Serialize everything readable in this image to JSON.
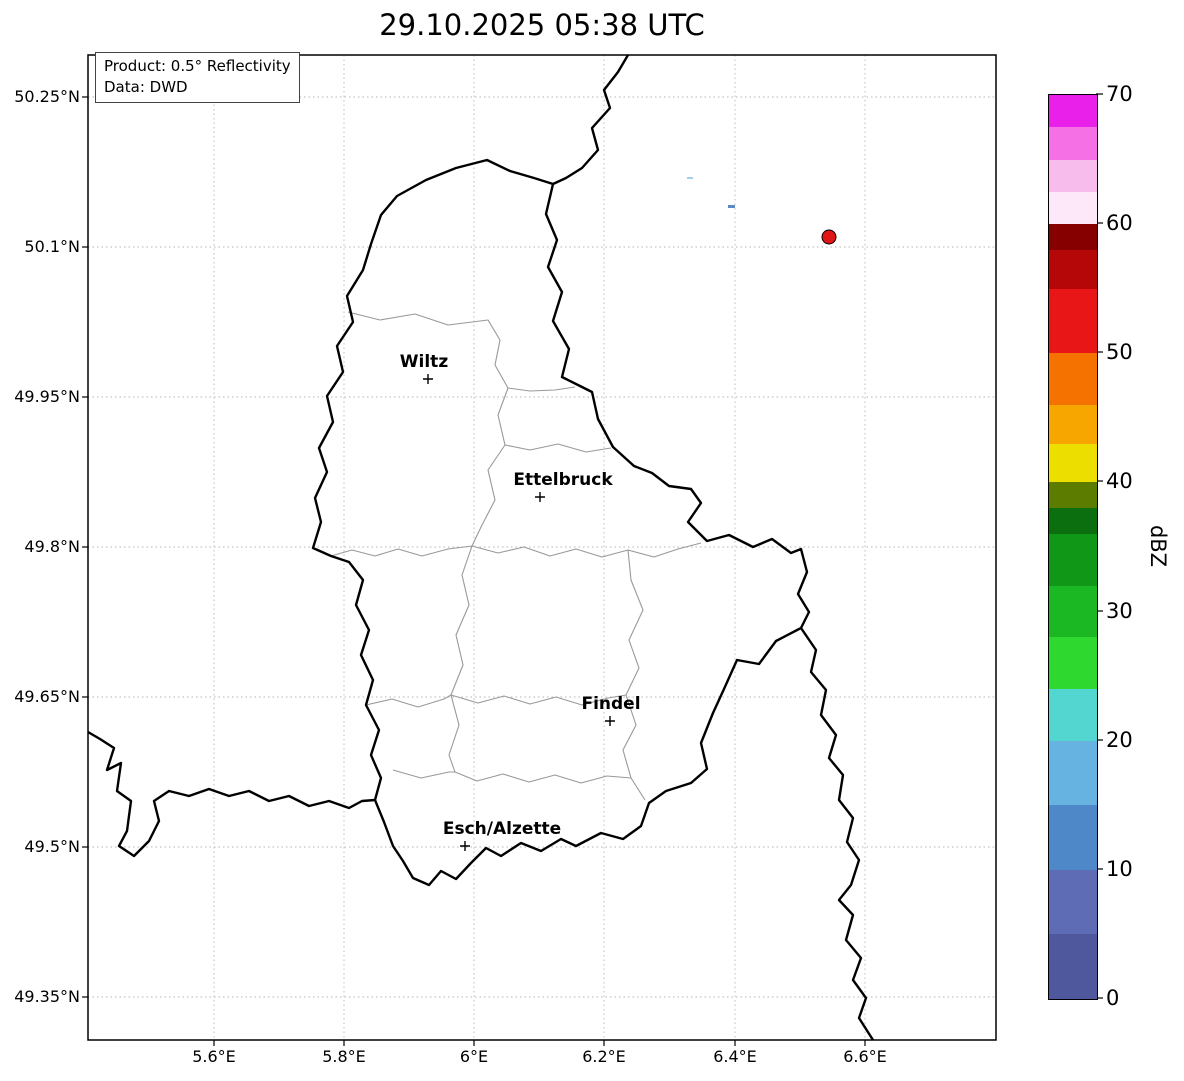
{
  "title": "29.10.2025 05:38 UTC",
  "info_box": {
    "line1": "Product: 0.5° Reflectivity",
    "line2": "Data: DWD"
  },
  "axes": {
    "lat_ticks": [
      "50.25°N",
      "50.1°N",
      "49.95°N",
      "49.8°N",
      "49.65°N",
      "49.5°N",
      "49.35°N"
    ],
    "lon_ticks": [
      "5.6°E",
      "5.8°E",
      "6°E",
      "6.2°E",
      "6.4°E",
      "6.6°E"
    ]
  },
  "map": {
    "region": "Luxembourg",
    "cities": [
      {
        "name": "Wiltz",
        "lon": 5.93,
        "lat": 49.97
      },
      {
        "name": "Ettelbruck",
        "lon": 6.1,
        "lat": 49.85
      },
      {
        "name": "Findel",
        "lon": 6.21,
        "lat": 49.63
      },
      {
        "name": "Esch/Alzette",
        "lon": 5.99,
        "lat": 49.5
      }
    ],
    "station_marker": {
      "color": "#e01616",
      "lon": 6.55,
      "lat": 50.11
    },
    "echoes": [
      {
        "color": "#a8cfe8",
        "lon": 6.33,
        "lat": 50.17
      },
      {
        "color": "#5d89c2",
        "lon": 6.4,
        "lat": 50.14
      }
    ],
    "border_color": "#000000",
    "district_border_color": "#999999"
  },
  "colorbar": {
    "label": "dBZ",
    "min": 0,
    "max": 70,
    "ticks": [
      "0",
      "10",
      "20",
      "30",
      "40",
      "50",
      "60",
      "70"
    ],
    "segments": [
      {
        "from": 0,
        "to": 5,
        "color": "#4f589d"
      },
      {
        "from": 5,
        "to": 10,
        "color": "#5e6cb5"
      },
      {
        "from": 10,
        "to": 15,
        "color": "#4e88c8"
      },
      {
        "from": 15,
        "to": 20,
        "color": "#66b2e0"
      },
      {
        "from": 20,
        "to": 24,
        "color": "#53d6cf"
      },
      {
        "from": 24,
        "to": 28,
        "color": "#2fd82f"
      },
      {
        "from": 28,
        "to": 32,
        "color": "#1cb824"
      },
      {
        "from": 32,
        "to": 36,
        "color": "#119718"
      },
      {
        "from": 36,
        "to": 38,
        "color": "#0b6f10"
      },
      {
        "from": 38,
        "to": 40,
        "color": "#5c7c00"
      },
      {
        "from": 40,
        "to": 43,
        "color": "#ecdf00"
      },
      {
        "from": 43,
        "to": 46,
        "color": "#f7a600"
      },
      {
        "from": 46,
        "to": 50,
        "color": "#f57200"
      },
      {
        "from": 50,
        "to": 55,
        "color": "#e81616"
      },
      {
        "from": 55,
        "to": 58,
        "color": "#b50707"
      },
      {
        "from": 58,
        "to": 60,
        "color": "#870000"
      },
      {
        "from": 60,
        "to": 62.5,
        "color": "#fce8f8"
      },
      {
        "from": 62.5,
        "to": 65,
        "color": "#f8bcec"
      },
      {
        "from": 65,
        "to": 67.5,
        "color": "#f470e4"
      },
      {
        "from": 67.5,
        "to": 70,
        "color": "#e920e9"
      }
    ]
  }
}
